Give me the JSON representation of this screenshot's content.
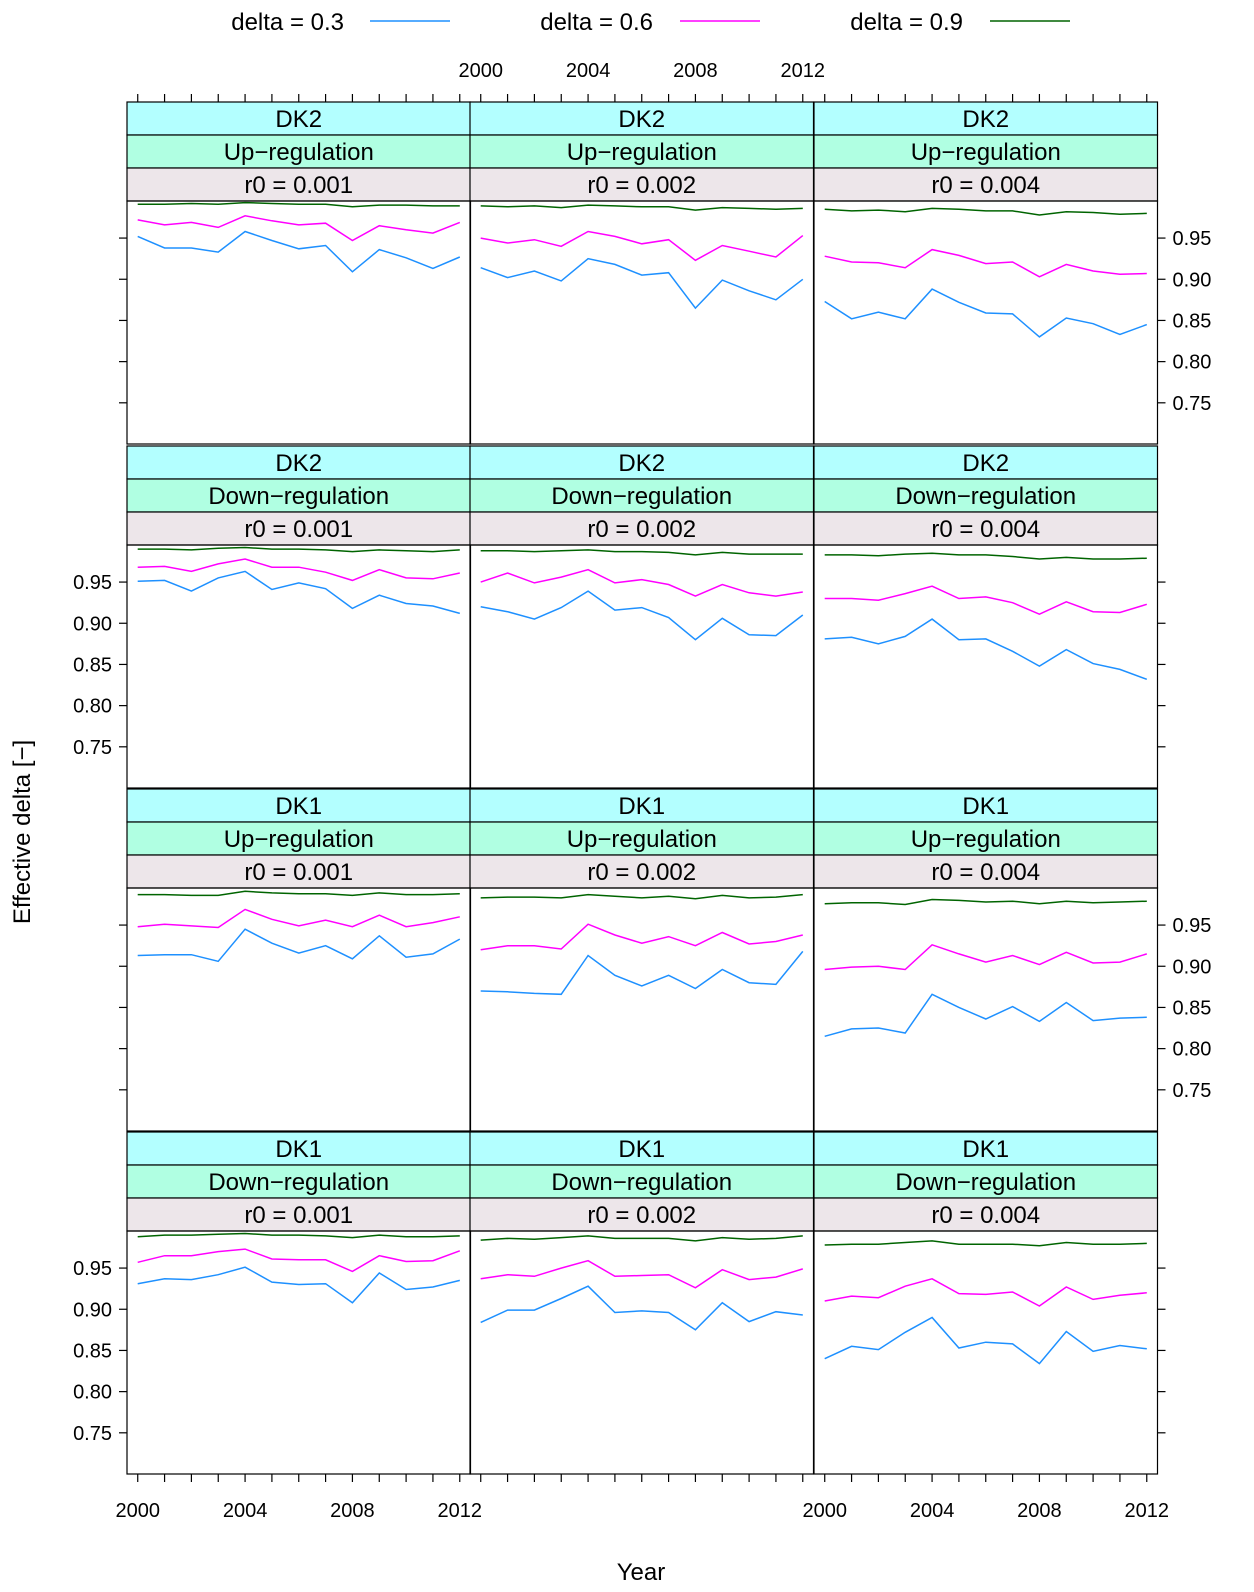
{
  "chart_data": {
    "type": "line",
    "layout": "trellis",
    "xlabel": "Year",
    "ylabel": "Effective delta [−]",
    "xlim": [
      1999.6,
      2012.4
    ],
    "ylim": [
      0.7,
      0.995
    ],
    "xticks": [
      2000,
      2004,
      2008,
      2012
    ],
    "xtick_labels": [
      "2000",
      "2004",
      "2008",
      "2012"
    ],
    "yticks": [
      0.75,
      0.8,
      0.85,
      0.9,
      0.95
    ],
    "ytick_labels": [
      "0.75",
      "0.80",
      "0.85",
      "0.90",
      "0.95"
    ],
    "x": [
      2000,
      2001,
      2002,
      2003,
      2004,
      2005,
      2006,
      2007,
      2008,
      2009,
      2010,
      2011,
      2012
    ],
    "legend": {
      "position": "top",
      "entries": [
        {
          "label": "delta = 0.3",
          "color": "#1E90FF"
        },
        {
          "label": "delta = 0.6",
          "color": "#FF00FF"
        },
        {
          "label": "delta = 0.9",
          "color": "#006400"
        }
      ]
    },
    "strip_colors": {
      "area": "#B3FFFF",
      "direction": "#B0FFE2",
      "r0": "#EDE6EA"
    },
    "panels": [
      {
        "area": "DK2",
        "direction": "Up−regulation",
        "r0": "r0 = 0.001",
        "series": [
          {
            "name": "delta = 0.3",
            "values": [
              0.952,
              0.938,
              0.938,
              0.933,
              0.958,
              0.947,
              0.937,
              0.941,
              0.909,
              0.936,
              0.926,
              0.913,
              0.927
            ]
          },
          {
            "name": "delta = 0.6",
            "values": [
              0.972,
              0.966,
              0.969,
              0.963,
              0.977,
              0.971,
              0.966,
              0.968,
              0.947,
              0.965,
              0.96,
              0.956,
              0.969
            ]
          },
          {
            "name": "delta = 0.9",
            "values": [
              0.991,
              0.991,
              0.992,
              0.991,
              0.993,
              0.992,
              0.991,
              0.991,
              0.988,
              0.99,
              0.99,
              0.989,
              0.989
            ]
          }
        ]
      },
      {
        "area": "DK2",
        "direction": "Up−regulation",
        "r0": "r0 = 0.002",
        "series": [
          {
            "name": "delta = 0.3",
            "values": [
              0.914,
              0.902,
              0.91,
              0.898,
              0.925,
              0.918,
              0.905,
              0.908,
              0.865,
              0.899,
              0.886,
              0.875,
              0.9
            ]
          },
          {
            "name": "delta = 0.6",
            "values": [
              0.95,
              0.944,
              0.948,
              0.94,
              0.958,
              0.952,
              0.943,
              0.948,
              0.923,
              0.941,
              0.934,
              0.927,
              0.953
            ]
          },
          {
            "name": "delta = 0.9",
            "values": [
              0.989,
              0.988,
              0.989,
              0.987,
              0.99,
              0.989,
              0.988,
              0.988,
              0.984,
              0.987,
              0.986,
              0.985,
              0.986
            ]
          }
        ]
      },
      {
        "area": "DK2",
        "direction": "Up−regulation",
        "r0": "r0 = 0.004",
        "series": [
          {
            "name": "delta = 0.3",
            "values": [
              0.873,
              0.852,
              0.86,
              0.852,
              0.888,
              0.872,
              0.859,
              0.858,
              0.83,
              0.853,
              0.846,
              0.833,
              0.845
            ]
          },
          {
            "name": "delta = 0.6",
            "values": [
              0.928,
              0.921,
              0.92,
              0.914,
              0.936,
              0.929,
              0.919,
              0.921,
              0.903,
              0.918,
              0.91,
              0.906,
              0.907
            ]
          },
          {
            "name": "delta = 0.9",
            "values": [
              0.985,
              0.983,
              0.984,
              0.982,
              0.986,
              0.985,
              0.983,
              0.983,
              0.978,
              0.982,
              0.981,
              0.979,
              0.98
            ]
          }
        ]
      },
      {
        "area": "DK2",
        "direction": "Down−regulation",
        "r0": "r0 = 0.001",
        "series": [
          {
            "name": "delta = 0.3",
            "values": [
              0.951,
              0.952,
              0.939,
              0.955,
              0.963,
              0.941,
              0.949,
              0.942,
              0.918,
              0.934,
              0.924,
              0.921,
              0.912
            ]
          },
          {
            "name": "delta = 0.6",
            "values": [
              0.968,
              0.969,
              0.963,
              0.972,
              0.978,
              0.968,
              0.968,
              0.962,
              0.952,
              0.965,
              0.955,
              0.954,
              0.961
            ]
          },
          {
            "name": "delta = 0.9",
            "values": [
              0.99,
              0.99,
              0.989,
              0.991,
              0.992,
              0.99,
              0.99,
              0.989,
              0.987,
              0.989,
              0.988,
              0.987,
              0.989
            ]
          }
        ]
      },
      {
        "area": "DK2",
        "direction": "Down−regulation",
        "r0": "r0 = 0.002",
        "series": [
          {
            "name": "delta = 0.3",
            "values": [
              0.92,
              0.914,
              0.905,
              0.919,
              0.939,
              0.916,
              0.919,
              0.907,
              0.88,
              0.906,
              0.886,
              0.885,
              0.91
            ]
          },
          {
            "name": "delta = 0.6",
            "values": [
              0.95,
              0.961,
              0.949,
              0.956,
              0.965,
              0.949,
              0.953,
              0.947,
              0.933,
              0.947,
              0.937,
              0.933,
              0.938
            ]
          },
          {
            "name": "delta = 0.9",
            "values": [
              0.988,
              0.988,
              0.987,
              0.988,
              0.989,
              0.987,
              0.987,
              0.986,
              0.983,
              0.986,
              0.984,
              0.984,
              0.984
            ]
          }
        ]
      },
      {
        "area": "DK2",
        "direction": "Down−regulation",
        "r0": "r0 = 0.004",
        "series": [
          {
            "name": "delta = 0.3",
            "values": [
              0.881,
              0.883,
              0.875,
              0.884,
              0.905,
              0.88,
              0.881,
              0.866,
              0.848,
              0.868,
              0.851,
              0.844,
              0.832
            ]
          },
          {
            "name": "delta = 0.6",
            "values": [
              0.93,
              0.93,
              0.928,
              0.936,
              0.945,
              0.93,
              0.932,
              0.925,
              0.911,
              0.926,
              0.914,
              0.913,
              0.923
            ]
          },
          {
            "name": "delta = 0.9",
            "values": [
              0.983,
              0.983,
              0.982,
              0.984,
              0.985,
              0.983,
              0.983,
              0.981,
              0.978,
              0.98,
              0.978,
              0.978,
              0.979
            ]
          }
        ]
      },
      {
        "area": "DK1",
        "direction": "Up−regulation",
        "r0": "r0 = 0.001",
        "series": [
          {
            "name": "delta = 0.3",
            "values": [
              0.913,
              0.914,
              0.914,
              0.906,
              0.945,
              0.928,
              0.916,
              0.925,
              0.909,
              0.937,
              0.911,
              0.915,
              0.933
            ]
          },
          {
            "name": "delta = 0.6",
            "values": [
              0.948,
              0.951,
              0.949,
              0.947,
              0.969,
              0.957,
              0.949,
              0.956,
              0.948,
              0.962,
              0.948,
              0.953,
              0.96
            ]
          },
          {
            "name": "delta = 0.9",
            "values": [
              0.987,
              0.987,
              0.986,
              0.986,
              0.991,
              0.989,
              0.988,
              0.988,
              0.986,
              0.989,
              0.987,
              0.987,
              0.988
            ]
          }
        ]
      },
      {
        "area": "DK1",
        "direction": "Up−regulation",
        "r0": "r0 = 0.002",
        "series": [
          {
            "name": "delta = 0.3",
            "values": [
              0.87,
              0.869,
              0.867,
              0.866,
              0.913,
              0.889,
              0.876,
              0.889,
              0.873,
              0.896,
              0.88,
              0.878,
              0.918
            ]
          },
          {
            "name": "delta = 0.6",
            "values": [
              0.92,
              0.925,
              0.925,
              0.921,
              0.951,
              0.938,
              0.928,
              0.936,
              0.925,
              0.941,
              0.927,
              0.93,
              0.938
            ]
          },
          {
            "name": "delta = 0.9",
            "values": [
              0.983,
              0.984,
              0.984,
              0.983,
              0.987,
              0.985,
              0.983,
              0.985,
              0.982,
              0.986,
              0.983,
              0.984,
              0.987
            ]
          }
        ]
      },
      {
        "area": "DK1",
        "direction": "Up−regulation",
        "r0": "r0 = 0.004",
        "series": [
          {
            "name": "delta = 0.3",
            "values": [
              0.815,
              0.824,
              0.825,
              0.819,
              0.866,
              0.85,
              0.836,
              0.851,
              0.833,
              0.856,
              0.834,
              0.837,
              0.838
            ]
          },
          {
            "name": "delta = 0.6",
            "values": [
              0.896,
              0.899,
              0.9,
              0.896,
              0.926,
              0.915,
              0.905,
              0.913,
              0.902,
              0.917,
              0.904,
              0.905,
              0.915
            ]
          },
          {
            "name": "delta = 0.9",
            "values": [
              0.976,
              0.977,
              0.977,
              0.975,
              0.981,
              0.98,
              0.978,
              0.979,
              0.976,
              0.979,
              0.977,
              0.978,
              0.979
            ]
          }
        ]
      },
      {
        "area": "DK1",
        "direction": "Down−regulation",
        "r0": "r0 = 0.001",
        "series": [
          {
            "name": "delta = 0.3",
            "values": [
              0.931,
              0.937,
              0.936,
              0.942,
              0.951,
              0.933,
              0.93,
              0.931,
              0.908,
              0.944,
              0.924,
              0.927,
              0.935
            ]
          },
          {
            "name": "delta = 0.6",
            "values": [
              0.957,
              0.965,
              0.965,
              0.97,
              0.973,
              0.961,
              0.96,
              0.96,
              0.946,
              0.965,
              0.958,
              0.959,
              0.971
            ]
          },
          {
            "name": "delta = 0.9",
            "values": [
              0.988,
              0.99,
              0.99,
              0.991,
              0.992,
              0.99,
              0.99,
              0.989,
              0.987,
              0.99,
              0.988,
              0.988,
              0.989
            ]
          }
        ]
      },
      {
        "area": "DK1",
        "direction": "Down−regulation",
        "r0": "r0 = 0.002",
        "series": [
          {
            "name": "delta = 0.3",
            "values": [
              0.884,
              0.899,
              0.899,
              0.913,
              0.928,
              0.896,
              0.898,
              0.896,
              0.875,
              0.908,
              0.885,
              0.897,
              0.893
            ]
          },
          {
            "name": "delta = 0.6",
            "values": [
              0.937,
              0.942,
              0.94,
              0.95,
              0.959,
              0.94,
              0.941,
              0.942,
              0.926,
              0.948,
              0.936,
              0.939,
              0.949
            ]
          },
          {
            "name": "delta = 0.9",
            "values": [
              0.984,
              0.986,
              0.985,
              0.987,
              0.989,
              0.986,
              0.986,
              0.986,
              0.983,
              0.987,
              0.985,
              0.986,
              0.989
            ]
          }
        ]
      },
      {
        "area": "DK1",
        "direction": "Down−regulation",
        "r0": "r0 = 0.004",
        "series": [
          {
            "name": "delta = 0.3",
            "values": [
              0.84,
              0.855,
              0.851,
              0.872,
              0.89,
              0.853,
              0.86,
              0.858,
              0.834,
              0.873,
              0.849,
              0.856,
              0.852
            ]
          },
          {
            "name": "delta = 0.6",
            "values": [
              0.91,
              0.916,
              0.914,
              0.928,
              0.937,
              0.919,
              0.918,
              0.921,
              0.904,
              0.927,
              0.912,
              0.917,
              0.92
            ]
          },
          {
            "name": "delta = 0.9",
            "values": [
              0.978,
              0.979,
              0.979,
              0.981,
              0.983,
              0.979,
              0.979,
              0.979,
              0.977,
              0.981,
              0.979,
              0.979,
              0.98
            ]
          }
        ]
      }
    ]
  }
}
